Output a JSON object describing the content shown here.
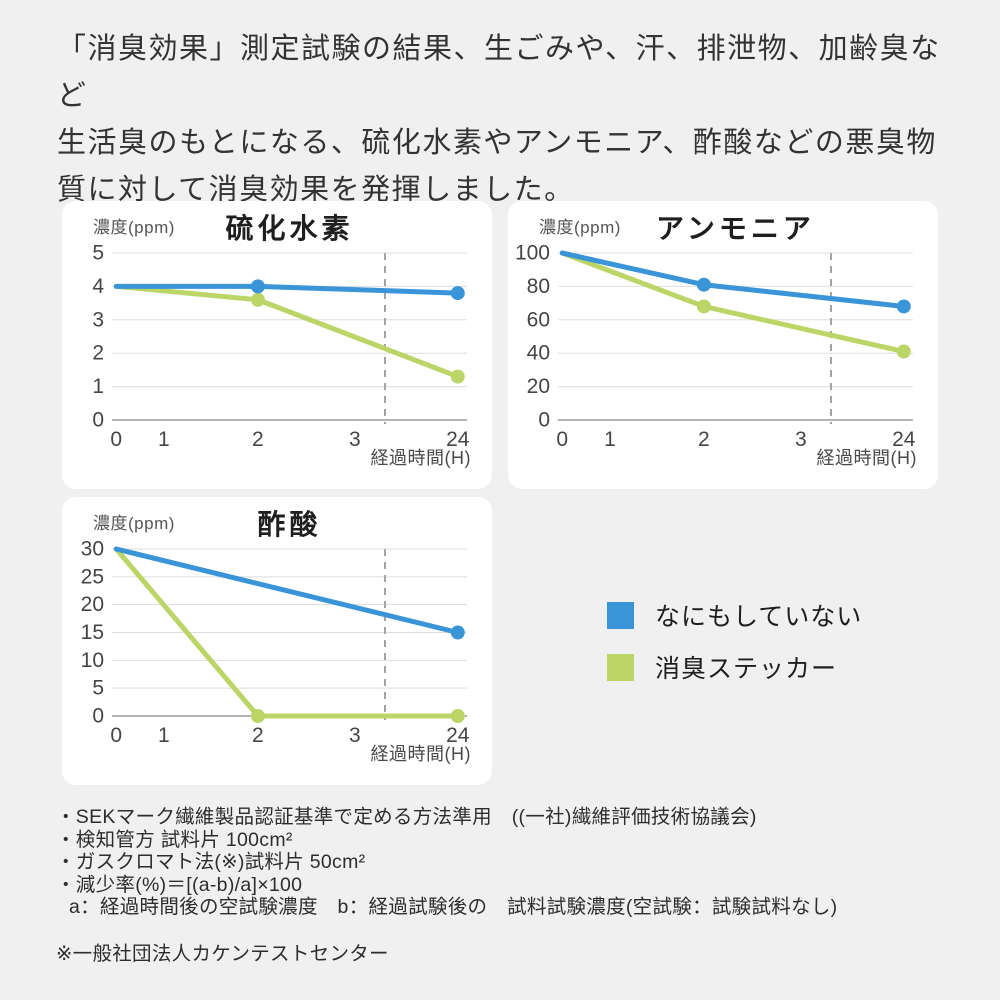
{
  "colors": {
    "blue": "#3a94d8",
    "green": "#bcd567",
    "grid": "#dedede",
    "axis": "#9c9c9c",
    "dashed": "#a3a3a3",
    "card_bg": "#ffffff",
    "page_bg": "#f0f0f0"
  },
  "heading": {
    "lines": [
      "「消臭効果」測定試験の結果、生ごみや、汗、排泄物、加齢臭など",
      "生活臭のもとになる、硫化水素やアンモニア、酢酸などの悪臭物",
      "質に対して消臭効果を発揮しました。"
    ]
  },
  "chart_data": [
    {
      "type": "line",
      "title": "硫化水素",
      "ylabel": "濃度(ppm)",
      "xlabel": "経過時間(H)",
      "x": [
        0,
        1,
        2,
        3,
        24
      ],
      "ylim": [
        0,
        5
      ],
      "yticks": [
        0,
        1,
        2,
        3,
        4,
        5
      ],
      "grid": true,
      "series": [
        {
          "name": "なにもしていない",
          "color": "blue",
          "data": [
            [
              0,
              4
            ],
            [
              2,
              4
            ],
            [
              24,
              3.8
            ]
          ],
          "dots": [
            2,
            24
          ]
        },
        {
          "name": "消臭ステッカー",
          "color": "green",
          "data": [
            [
              0,
              4
            ],
            [
              2,
              3.6
            ],
            [
              24,
              1.3
            ]
          ],
          "dots": [
            2,
            24
          ]
        }
      ]
    },
    {
      "type": "line",
      "title": "アンモニア",
      "ylabel": "濃度(ppm)",
      "xlabel": "経過時間(H)",
      "x": [
        0,
        1,
        2,
        3,
        24
      ],
      "ylim": [
        0,
        100
      ],
      "yticks": [
        0,
        20,
        40,
        60,
        80,
        100
      ],
      "grid": true,
      "series": [
        {
          "name": "なにもしていない",
          "color": "blue",
          "data": [
            [
              0,
              100
            ],
            [
              2,
              81
            ],
            [
              24,
              68
            ]
          ],
          "dots": [
            2,
            24
          ]
        },
        {
          "name": "消臭ステッカー",
          "color": "green",
          "data": [
            [
              0,
              100
            ],
            [
              2,
              68
            ],
            [
              24,
              41
            ]
          ],
          "dots": [
            2,
            24
          ]
        }
      ]
    },
    {
      "type": "line",
      "title": "酢酸",
      "ylabel": "濃度(ppm)",
      "xlabel": "経過時間(H)",
      "x": [
        0,
        1,
        2,
        3,
        24
      ],
      "ylim": [
        0,
        30
      ],
      "yticks": [
        0,
        5,
        10,
        15,
        20,
        25,
        30
      ],
      "grid": true,
      "series": [
        {
          "name": "なにもしていない",
          "color": "blue",
          "data": [
            [
              0,
              30
            ],
            [
              24,
              15
            ]
          ],
          "dots": [
            24
          ]
        },
        {
          "name": "消臭ステッカー",
          "color": "green",
          "data": [
            [
              0,
              30
            ],
            [
              2,
              0
            ],
            [
              24,
              0
            ]
          ],
          "dots": [
            2,
            24
          ]
        }
      ]
    }
  ],
  "legend": {
    "items": [
      {
        "label": "なにもしていない",
        "color_key": "blue"
      },
      {
        "label": "消臭ステッカー",
        "color_key": "green"
      }
    ]
  },
  "footnotes": {
    "lines": [
      "・SEKマーク繊維製品認証基準で定める方法準用　((一社)繊維評価技術協議会)",
      "・検知管方 試料片 100cm²",
      "・ガスクロマト法(※)試料片 50cm²",
      "・減少率(%)＝[(a-b)/a]×100",
      "a：経過時間後の空試験濃度　b：経過試験後の　試料試験濃度(空試験：試験試料なし)"
    ],
    "source": "※一般社団法人カケンテストセンター"
  }
}
